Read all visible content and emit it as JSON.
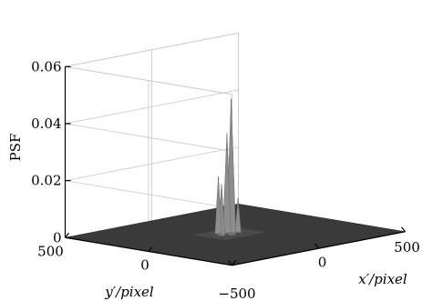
{
  "chart_data": {
    "type": "surface",
    "title": "",
    "zlabel": "PSF",
    "xlabel": "x′/pixel",
    "ylabel": "y′/pixel",
    "x_ticks": [
      {
        "value": -500,
        "label": ""
      },
      {
        "value": 0,
        "label": "0"
      },
      {
        "value": 500,
        "label": "500"
      }
    ],
    "y_ticks": [
      {
        "value": 500,
        "label": "500"
      },
      {
        "value": 0,
        "label": "0"
      },
      {
        "value": -500,
        "label": "−500"
      }
    ],
    "corner_label": "−500",
    "z_ticks": [
      {
        "value": 0,
        "label": "0"
      },
      {
        "value": 0.02,
        "label": "0.02"
      },
      {
        "value": 0.04,
        "label": "0.04"
      },
      {
        "value": 0.06,
        "label": "0.06"
      }
    ],
    "xlim": [
      -500,
      500
    ],
    "ylim": [
      -500,
      500
    ],
    "zlim": [
      0,
      0.06
    ],
    "grid": true,
    "surface_color": "#3a3a3a",
    "peaks": [
      {
        "x": 15,
        "y": 40,
        "z": 0.047
      },
      {
        "x": 5,
        "y": 55,
        "z": 0.035
      },
      {
        "x": -30,
        "y": 70,
        "z": 0.02
      },
      {
        "x": -10,
        "y": 10,
        "z": 0.028
      },
      {
        "x": 45,
        "y": 30,
        "z": 0.012
      },
      {
        "x": -50,
        "y": 30,
        "z": 0.018
      }
    ]
  }
}
